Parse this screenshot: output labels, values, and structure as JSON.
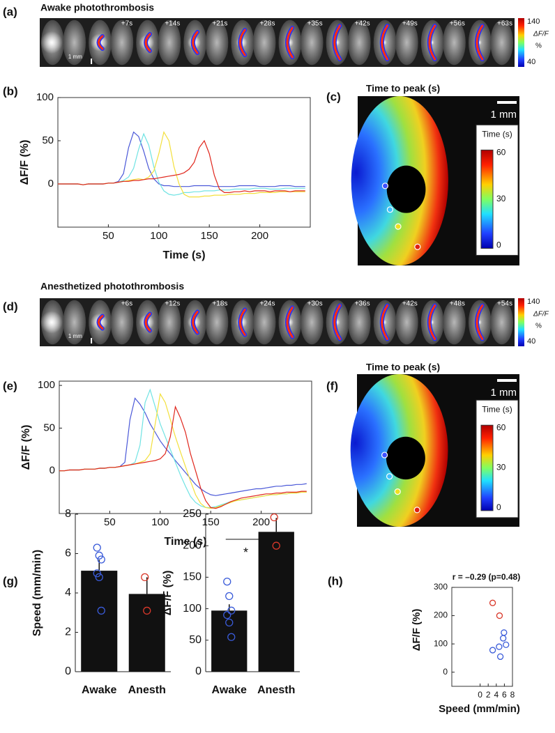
{
  "panels": [
    "(a)",
    "(b)",
    "(c)",
    "(d)",
    "(e)",
    "(f)",
    "(g)",
    "(h)"
  ],
  "strips": [
    {
      "title": "Awake photothrombosis",
      "times": [
        "+7s",
        "+14s",
        "+21s",
        "+28s",
        "+35s",
        "+42s",
        "+49s",
        "+56s",
        "+63s"
      ],
      "scale_bar": "1 mm",
      "colorbar": {
        "max": 140,
        "min": 40,
        "label": "ΔF/F",
        "unit": "%"
      }
    },
    {
      "title": "Anesthetized photothrombosis",
      "times": [
        "+6s",
        "+12s",
        "+18s",
        "+24s",
        "+30s",
        "+36s",
        "+42s",
        "+48s",
        "+54s"
      ],
      "scale_bar": "1 mm",
      "colorbar": {
        "max": 140,
        "min": 40,
        "label": "ΔF/F",
        "unit": "%"
      }
    }
  ],
  "maps": [
    {
      "title": "Time to peak (s)",
      "scale_bar": "1 mm",
      "colorbar_title": "Time (s)",
      "colorbar_ticks": [
        60,
        30,
        0
      ]
    },
    {
      "title": "Time to peak (s)",
      "scale_bar": "1 mm",
      "colorbar_title": "Time (s)",
      "colorbar_ticks": [
        60,
        30,
        0
      ]
    }
  ],
  "chart_data": [
    {
      "type": "line",
      "xlabel": "Time (s)",
      "ylabel": "ΔF/F (%)",
      "x": [
        0,
        5,
        10,
        15,
        20,
        25,
        30,
        35,
        40,
        45,
        50,
        55,
        60,
        65,
        70,
        75,
        80,
        85,
        90,
        95,
        100,
        105,
        110,
        115,
        120,
        125,
        130,
        135,
        140,
        145,
        150,
        155,
        160,
        165,
        170,
        175,
        180,
        185,
        190,
        195,
        200,
        205,
        210,
        215,
        220,
        225,
        230,
        235,
        240,
        245
      ],
      "xlim": [
        0,
        250
      ],
      "ylim": [
        -50,
        100
      ],
      "xticks": [
        50,
        100,
        150,
        200
      ],
      "yticks": [
        0,
        50,
        100
      ],
      "series": [
        {
          "color": "#4a58d8",
          "values": [
            0,
            0,
            0,
            0,
            0,
            -1,
            0,
            0,
            0,
            0,
            1,
            1,
            3,
            12,
            42,
            60,
            55,
            38,
            18,
            6,
            0,
            -2,
            -2,
            -3,
            -3,
            -3,
            -3,
            -2,
            -2,
            -2,
            -2,
            -3,
            -3,
            -3,
            -3,
            -3,
            -2,
            -2,
            -2,
            -2,
            -3,
            -3,
            -3,
            -3,
            -2,
            -2,
            -2,
            -3,
            -3,
            -3
          ]
        },
        {
          "color": "#6fe3e3",
          "values": [
            0,
            0,
            0,
            0,
            0,
            -1,
            0,
            0,
            0,
            0,
            1,
            1,
            2,
            4,
            8,
            18,
            40,
            58,
            45,
            20,
            2,
            -8,
            -12,
            -13,
            -12,
            -10,
            -10,
            -9,
            -9,
            -8,
            -8,
            -8,
            -7,
            -7,
            -7,
            -6,
            -6,
            -6,
            -6,
            -5,
            -5,
            -5,
            -6,
            -6,
            -6,
            -5,
            -5,
            -5,
            -5,
            -5
          ]
        },
        {
          "color": "#f3e03c",
          "values": [
            0,
            0,
            0,
            0,
            0,
            -1,
            0,
            0,
            0,
            0,
            1,
            1,
            2,
            3,
            4,
            5,
            6,
            5,
            8,
            15,
            35,
            60,
            50,
            20,
            0,
            -12,
            -15,
            -15,
            -15,
            -14,
            -14,
            -13,
            -13,
            -13,
            -12,
            -12,
            -12,
            -11,
            -11,
            -11,
            -10,
            -10,
            -10,
            -10,
            -9,
            -9,
            -9,
            -9,
            -9,
            -9
          ]
        },
        {
          "color": "#e0261c",
          "values": [
            0,
            0,
            0,
            0,
            0,
            -1,
            0,
            0,
            0,
            0,
            1,
            1,
            2,
            3,
            3,
            4,
            4,
            5,
            6,
            6,
            7,
            8,
            9,
            10,
            11,
            13,
            17,
            25,
            42,
            50,
            35,
            10,
            -6,
            -10,
            -10,
            -9,
            -9,
            -8,
            -9,
            -8,
            -8,
            -8,
            -9,
            -8,
            -8,
            -8,
            -9,
            -8,
            -8,
            -8
          ]
        }
      ]
    },
    {
      "type": "line",
      "xlabel": "Time (s)",
      "ylabel": "ΔF/F (%)",
      "x": [
        0,
        5,
        10,
        15,
        20,
        25,
        30,
        35,
        40,
        45,
        50,
        55,
        60,
        65,
        70,
        75,
        80,
        85,
        90,
        95,
        100,
        105,
        110,
        115,
        120,
        125,
        130,
        135,
        140,
        145,
        150,
        155,
        160,
        165,
        170,
        175,
        180,
        185,
        190,
        195,
        200,
        205,
        210,
        215,
        220,
        225,
        230,
        235,
        240,
        245
      ],
      "xlim": [
        0,
        250
      ],
      "ylim": [
        -50,
        105
      ],
      "xticks": [
        50,
        100,
        150,
        200
      ],
      "yticks": [
        0,
        50,
        100
      ],
      "series": [
        {
          "color": "#4a58d8",
          "values": [
            0,
            0,
            1,
            1,
            1,
            2,
            2,
            2,
            3,
            3,
            4,
            4,
            5,
            10,
            60,
            85,
            78,
            68,
            55,
            45,
            35,
            27,
            20,
            12,
            5,
            -2,
            -9,
            -16,
            -21,
            -25,
            -28,
            -29,
            -28,
            -27,
            -26,
            -25,
            -24,
            -23,
            -22,
            -21,
            -21,
            -20,
            -19,
            -18,
            -18,
            -17,
            -17,
            -16,
            -16,
            -15
          ]
        },
        {
          "color": "#6fe3e3",
          "values": [
            0,
            0,
            1,
            1,
            1,
            2,
            2,
            2,
            3,
            3,
            4,
            4,
            5,
            6,
            7,
            10,
            30,
            80,
            95,
            75,
            55,
            40,
            25,
            10,
            -5,
            -18,
            -30,
            -37,
            -41,
            -43,
            -43,
            -42,
            -40,
            -38,
            -36,
            -35,
            -34,
            -33,
            -32,
            -31,
            -30,
            -29,
            -28,
            -28,
            -27,
            -27,
            -26,
            -26,
            -25,
            -25
          ]
        },
        {
          "color": "#f3e03c",
          "values": [
            0,
            0,
            1,
            1,
            1,
            2,
            2,
            2,
            3,
            3,
            4,
            4,
            5,
            6,
            7,
            8,
            10,
            12,
            20,
            55,
            90,
            80,
            60,
            40,
            22,
            5,
            -12,
            -28,
            -38,
            -43,
            -44,
            -43,
            -41,
            -39,
            -37,
            -35,
            -34,
            -33,
            -32,
            -31,
            -30,
            -29,
            -28,
            -28,
            -27,
            -27,
            -26,
            -26,
            -25,
            -25
          ]
        },
        {
          "color": "#e0261c",
          "values": [
            0,
            0,
            1,
            1,
            1,
            2,
            2,
            2,
            3,
            3,
            4,
            4,
            5,
            6,
            7,
            8,
            9,
            10,
            11,
            12,
            14,
            20,
            40,
            75,
            62,
            45,
            20,
            0,
            -20,
            -35,
            -43,
            -44,
            -42,
            -39,
            -36,
            -34,
            -32,
            -31,
            -30,
            -29,
            -28,
            -27,
            -27,
            -26,
            -26,
            -25,
            -25,
            -25,
            -24,
            -24
          ]
        }
      ]
    },
    {
      "type": "bar",
      "ylabel": "Speed (mm/min)",
      "categories": [
        "Awake",
        "Anesth"
      ],
      "values": [
        5.13,
        3.95
      ],
      "errors": [
        0.55,
        0.85
      ],
      "points": [
        [
          6.3,
          5.9,
          5.7,
          5.0,
          4.8,
          3.1
        ],
        [
          4.8,
          3.1
        ]
      ],
      "point_colors": [
        "#3a5bd9",
        "#d9382a"
      ],
      "color": "#111111",
      "ylim": [
        0,
        8
      ],
      "yticks": [
        0,
        2,
        4,
        6,
        8
      ]
    },
    {
      "type": "bar",
      "ylabel": "ΔF/F (%)",
      "categories": [
        "Awake",
        "Anesth"
      ],
      "values": [
        97,
        222
      ],
      "errors": [
        10,
        22
      ],
      "points": [
        [
          143,
          120,
          97,
          90,
          78,
          55
        ],
        [
          245,
          200
        ]
      ],
      "point_colors": [
        "#3a5bd9",
        "#d9382a"
      ],
      "color": "#111111",
      "ylim": [
        0,
        250
      ],
      "yticks": [
        0,
        50,
        100,
        150,
        200,
        250
      ],
      "annotation": "*"
    },
    {
      "type": "scatter",
      "title": "r = –0.29 (p=0.48)",
      "xlabel": "Speed (mm/min)",
      "ylabel": "ΔF/F (%)",
      "xlim": [
        -7,
        8
      ],
      "ylim": [
        -50,
        300
      ],
      "xticks": [
        0,
        2,
        4,
        6,
        8
      ],
      "yticks": [
        0,
        100,
        200,
        300
      ],
      "series": [
        {
          "color": "#3a5bd9",
          "x": [
            3.1,
            4.7,
            5.0,
            5.7,
            5.9,
            6.4
          ],
          "values": [
            78,
            90,
            55,
            120,
            140,
            97
          ]
        },
        {
          "color": "#d9382a",
          "x": [
            3.1,
            4.8
          ],
          "values": [
            245,
            200
          ]
        }
      ]
    }
  ]
}
